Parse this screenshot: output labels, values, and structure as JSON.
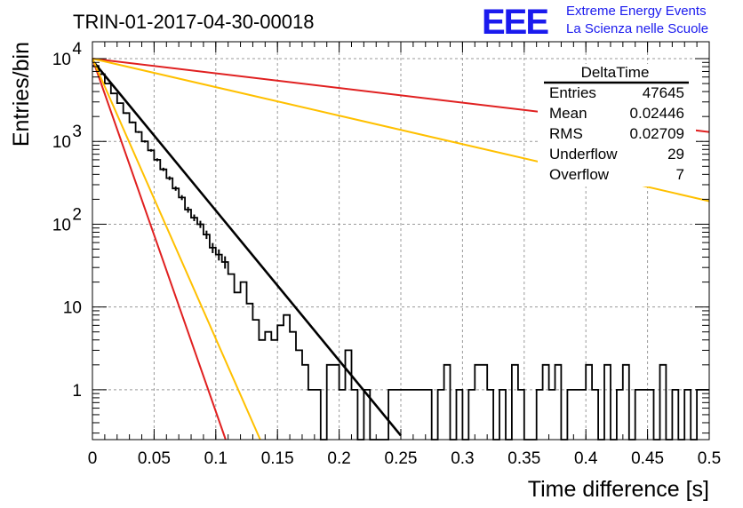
{
  "header": {
    "title": "TRIN-01-2017-04-30-00018",
    "logo_text": "EEE",
    "logo_line1": "Extreme Energy Events",
    "logo_line2": "La Scienza nelle Scuole"
  },
  "stats_box": {
    "title": "DeltaTime",
    "rows": [
      {
        "label": "Entries",
        "value": "47645"
      },
      {
        "label": "Mean",
        "value": "0.02446"
      },
      {
        "label": "RMS",
        "value": "0.02709"
      },
      {
        "label": "Underflow",
        "value": "29"
      },
      {
        "label": "Overflow",
        "value": "7"
      }
    ]
  },
  "colors": {
    "histogram": "#000000",
    "fit_black": "#000000",
    "curve_red": "#e02020",
    "curve_orange": "#ffc000",
    "grid": "#9a9a9a",
    "logo": "#1a1aee"
  },
  "chart_data": {
    "type": "line",
    "title": "TRIN-01-2017-04-30-00018",
    "xlabel": "Time difference [s]",
    "ylabel": "Entries/bin",
    "xlim": [
      0,
      0.5
    ],
    "ylim": [
      0.25,
      16000
    ],
    "log_y": true,
    "grid": true,
    "legend": "top-right",
    "x_ticks": [
      {
        "value": 0,
        "label": "0"
      },
      {
        "value": 0.05,
        "label": "0.05"
      },
      {
        "value": 0.1,
        "label": "0.1"
      },
      {
        "value": 0.15,
        "label": "0.15"
      },
      {
        "value": 0.2,
        "label": "0.2"
      },
      {
        "value": 0.25,
        "label": "0.25"
      },
      {
        "value": 0.3,
        "label": "0.3"
      },
      {
        "value": 0.35,
        "label": "0.35"
      },
      {
        "value": 0.4,
        "label": "0.4"
      },
      {
        "value": 0.45,
        "label": "0.45"
      },
      {
        "value": 0.5,
        "label": "0.5"
      }
    ],
    "y_ticks": [
      {
        "value": 1,
        "base": "1",
        "exp": ""
      },
      {
        "value": 10,
        "base": "10",
        "exp": ""
      },
      {
        "value": 100,
        "base": "10",
        "exp": "2"
      },
      {
        "value": 1000,
        "base": "10",
        "exp": "3"
      },
      {
        "value": 10000,
        "base": "10",
        "exp": "4"
      }
    ],
    "histogram": {
      "bin_width": 0.005,
      "counts": [
        8200,
        6500,
        5000,
        3800,
        2900,
        2200,
        1700,
        1300,
        1000,
        780,
        600,
        460,
        360,
        270,
        210,
        150,
        120,
        100,
        75,
        52,
        43,
        35,
        25,
        15,
        20,
        11,
        7,
        4,
        5,
        4,
        6,
        8,
        5,
        3,
        2,
        1,
        1,
        0,
        2,
        2,
        1,
        3,
        1,
        0,
        1,
        0,
        0,
        0,
        1,
        1,
        1,
        1,
        1,
        1,
        1,
        0,
        1,
        2,
        0,
        1,
        0,
        1,
        2,
        2,
        1,
        0,
        1,
        0,
        2,
        1,
        0,
        0,
        1,
        2,
        1,
        2,
        0,
        1,
        1,
        1,
        2,
        1,
        0,
        2,
        0,
        1,
        2,
        0,
        1,
        1,
        1,
        0,
        2,
        0,
        1,
        0,
        1,
        0,
        1,
        1
      ]
    },
    "series": [
      {
        "color": "#000000",
        "x": [
          0,
          0.25
        ],
        "y": [
          9500,
          0.28
        ]
      },
      {
        "color": "#e02020",
        "x": [
          0,
          0.5
        ],
        "y": [
          10000,
          1300
        ]
      },
      {
        "color": "#ffc000",
        "x": [
          0,
          0.5
        ],
        "y": [
          10000,
          190
        ]
      },
      {
        "color": "#e02020",
        "x": [
          0,
          0.108
        ],
        "y": [
          10000,
          0.25
        ]
      },
      {
        "color": "#ffc000",
        "x": [
          0,
          0.136
        ],
        "y": [
          10000,
          0.25
        ]
      }
    ]
  }
}
